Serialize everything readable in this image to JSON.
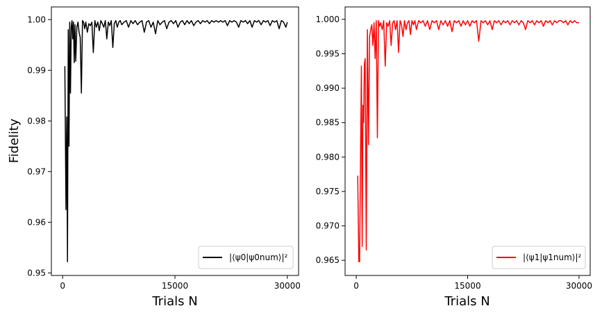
{
  "chart_data": [
    {
      "type": "line",
      "title": "",
      "xlabel": "Trials N",
      "ylabel": "Fidelity",
      "xlim": [
        -1500,
        31500
      ],
      "ylim": [
        0.9495,
        1.0025
      ],
      "xticks": [
        0,
        15000,
        30000
      ],
      "xtick_labels": [
        "0",
        "15000",
        "30000"
      ],
      "yticks": [
        0.95,
        0.96,
        0.97,
        0.98,
        0.99,
        1.0
      ],
      "ytick_labels": [
        "0.95",
        "0.96",
        "0.97",
        "0.98",
        "0.99",
        "1.00"
      ],
      "grid": false,
      "legend_position": "lower-right",
      "series": [
        {
          "name": "|⟨ψ0|ψ0num⟩|²",
          "color": "#000000",
          "x": [
            300,
            450,
            550,
            650,
            750,
            850,
            950,
            1050,
            1150,
            1250,
            1350,
            1450,
            1550,
            1650,
            1750,
            1900,
            2050,
            2200,
            2350,
            2500,
            2650,
            2800,
            2950,
            3100,
            3300,
            3500,
            3700,
            3900,
            4100,
            4300,
            4500,
            4700,
            4900,
            5100,
            5300,
            5500,
            5700,
            5900,
            6100,
            6300,
            6500,
            6700,
            6900,
            7100,
            7300,
            7500,
            7700,
            7900,
            8200,
            8500,
            8800,
            9100,
            9400,
            9700,
            10000,
            10300,
            10600,
            10900,
            11200,
            11500,
            11800,
            12100,
            12400,
            12700,
            13000,
            13300,
            13600,
            13900,
            14200,
            14500,
            14800,
            15100,
            15400,
            15700,
            16000,
            16300,
            16600,
            16900,
            17200,
            17500,
            17800,
            18100,
            18400,
            18700,
            19000,
            19300,
            19600,
            19900,
            20200,
            20500,
            20800,
            21100,
            21400,
            21700,
            22000,
            22300,
            22600,
            22900,
            23200,
            23500,
            23800,
            24100,
            24400,
            24700,
            25000,
            25300,
            25600,
            25900,
            26200,
            26500,
            26800,
            27100,
            27400,
            27700,
            28000,
            28300,
            28600,
            28900,
            29200,
            29500,
            29800,
            30000
          ],
          "y": [
            0.9908,
            0.9625,
            0.9808,
            0.9522,
            0.998,
            0.975,
            0.9995,
            0.9855,
            0.9985,
            0.9998,
            0.9962,
            0.9995,
            0.9915,
            0.999,
            0.9918,
            0.9985,
            0.9995,
            0.9975,
            0.9965,
            0.9855,
            0.9998,
            0.9995,
            0.9982,
            0.9995,
            0.9975,
            0.9992,
            0.9988,
            0.9995,
            0.9935,
            0.9998,
            0.9985,
            0.9995,
            0.9978,
            0.9998,
            0.9992,
            0.9985,
            0.9998,
            0.9962,
            0.9995,
            0.9988,
            0.9998,
            0.9945,
            0.9992,
            0.9998,
            0.9985,
            0.9995,
            0.9998,
            0.999,
            0.9995,
            0.9998,
            0.9985,
            0.9998,
            0.9992,
            0.9998,
            0.999,
            0.9995,
            0.9998,
            0.9975,
            0.9995,
            0.9998,
            0.9985,
            0.9995,
            0.9972,
            0.9998,
            0.999,
            0.9995,
            0.9998,
            0.9982,
            0.9995,
            0.9998,
            0.9992,
            0.9998,
            0.9985,
            0.9995,
            0.9998,
            0.999,
            0.9998,
            0.9992,
            0.9998,
            0.9988,
            0.9995,
            0.9998,
            0.9992,
            0.9998,
            0.9995,
            0.9998,
            0.9992,
            0.9998,
            0.9995,
            0.9998,
            0.9995,
            0.9998,
            0.9995,
            0.9998,
            0.9988,
            0.9998,
            0.9995,
            0.9998,
            0.9995,
            0.9985,
            0.9998,
            0.9995,
            0.9998,
            0.9992,
            0.9998,
            0.9985,
            0.9998,
            0.9995,
            0.9998,
            0.999,
            0.9998,
            0.9995,
            0.9998,
            0.9988,
            0.9998,
            0.9995,
            0.9998,
            0.9982,
            0.9998,
            0.9995,
            0.9985,
            0.9995
          ]
        }
      ]
    },
    {
      "type": "line",
      "title": "",
      "xlabel": "Trials N",
      "ylabel": "",
      "xlim": [
        -1500,
        31500
      ],
      "ylim": [
        0.9628,
        1.0018
      ],
      "xticks": [
        0,
        15000,
        30000
      ],
      "xtick_labels": [
        "0",
        "15000",
        "30000"
      ],
      "yticks": [
        0.965,
        0.97,
        0.975,
        0.98,
        0.985,
        0.99,
        0.995,
        1.0
      ],
      "ytick_labels": [
        "0.965",
        "0.970",
        "0.975",
        "0.980",
        "0.985",
        "0.990",
        "0.995",
        "1.000"
      ],
      "grid": false,
      "legend_position": "lower-right",
      "series": [
        {
          "name": "|⟨ψ1|ψ1num⟩|²",
          "color": "#ff0000",
          "x": [
            200,
            350,
            450,
            550,
            700,
            800,
            900,
            1000,
            1100,
            1200,
            1350,
            1500,
            1650,
            1800,
            1950,
            2100,
            2250,
            2400,
            2550,
            2700,
            2850,
            3000,
            3150,
            3300,
            3500,
            3700,
            3900,
            4100,
            4300,
            4500,
            4700,
            4900,
            5100,
            5300,
            5500,
            5700,
            5900,
            6100,
            6300,
            6500,
            6700,
            6900,
            7100,
            7300,
            7500,
            7700,
            7900,
            8100,
            8400,
            8700,
            9000,
            9300,
            9600,
            9900,
            10200,
            10500,
            10800,
            11100,
            11400,
            11700,
            12000,
            12300,
            12600,
            12900,
            13200,
            13500,
            13800,
            14100,
            14400,
            14700,
            15000,
            15300,
            15600,
            15900,
            16200,
            16500,
            16800,
            17100,
            17400,
            17700,
            18000,
            18300,
            18600,
            18900,
            19200,
            19500,
            19800,
            20100,
            20400,
            20700,
            21000,
            21300,
            21600,
            21900,
            22200,
            22500,
            22800,
            23100,
            23400,
            23700,
            24000,
            24300,
            24600,
            24900,
            25200,
            25500,
            25800,
            26100,
            26400,
            26700,
            27000,
            27300,
            27600,
            27900,
            28200,
            28500,
            28800,
            29100,
            29400,
            29700,
            30000
          ],
          "y": [
            0.9773,
            0.9648,
            0.9648,
            0.976,
            0.9932,
            0.967,
            0.9875,
            0.985,
            0.9935,
            0.9943,
            0.9665,
            0.9985,
            0.9818,
            0.9975,
            0.9985,
            0.9992,
            0.9962,
            0.9995,
            0.9943,
            0.9998,
            0.9828,
            0.9998,
            0.999,
            0.9995,
            0.9985,
            0.9998,
            0.9932,
            0.9995,
            0.999,
            0.9998,
            0.9962,
            0.9995,
            0.9998,
            0.9985,
            0.9998,
            0.9952,
            0.9998,
            0.9992,
            0.9975,
            0.9998,
            0.9985,
            0.9995,
            0.9998,
            0.9978,
            0.9998,
            0.9992,
            0.9998,
            0.9985,
            0.9998,
            0.9995,
            0.9998,
            0.999,
            0.9998,
            0.9985,
            0.9998,
            0.9995,
            0.9998,
            0.9985,
            0.9998,
            0.9992,
            0.9998,
            0.999,
            0.9998,
            0.9982,
            0.9998,
            0.9995,
            0.9998,
            0.999,
            0.9998,
            0.9992,
            0.9998,
            0.999,
            0.9998,
            0.9995,
            0.9998,
            0.9968,
            0.9998,
            0.9995,
            0.9998,
            0.9992,
            0.9998,
            0.9985,
            0.9998,
            0.9995,
            0.9998,
            0.9992,
            0.9998,
            0.9995,
            0.9998,
            0.9992,
            0.9998,
            0.9995,
            0.9998,
            0.9992,
            0.9998,
            0.9995,
            0.9985,
            0.9998,
            0.9995,
            0.9998,
            0.9992,
            0.9998,
            0.9995,
            0.9998,
            0.999,
            0.9998,
            0.9995,
            0.9998,
            0.9992,
            0.9998,
            0.9995,
            0.9998,
            0.9998,
            0.9995,
            0.9998,
            0.9992,
            0.9998,
            0.9995,
            0.9998,
            0.9995,
            0.9995
          ]
        }
      ]
    }
  ]
}
